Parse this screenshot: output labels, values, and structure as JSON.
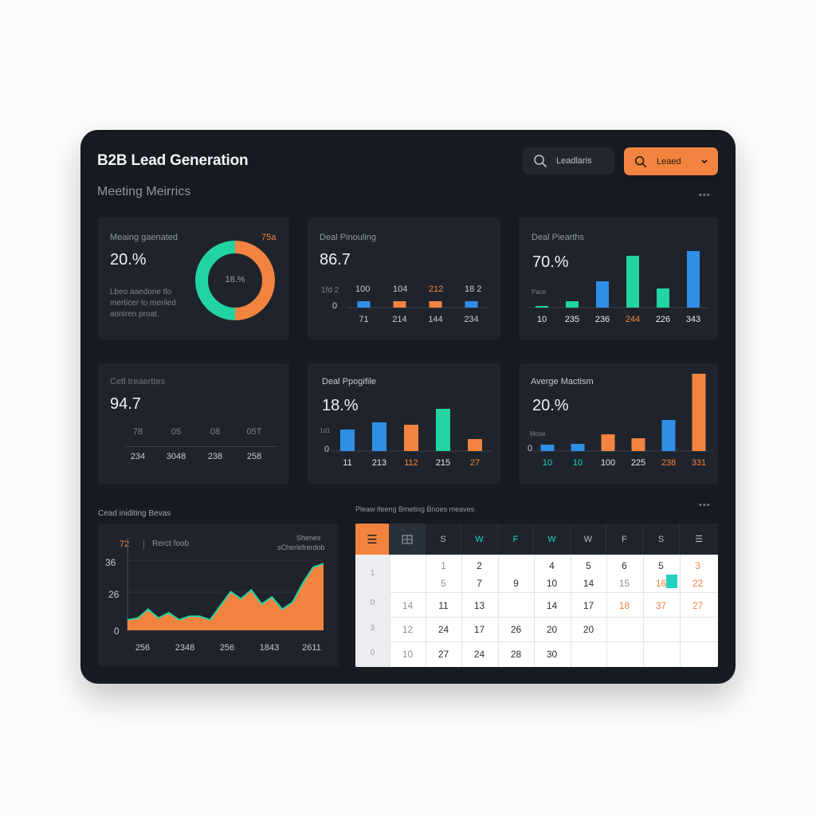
{
  "header": {
    "title": "B2B Lead Generation",
    "subtitle": "Meeting Meirrics",
    "search_label": "Leadlaris",
    "button_label": "Leaed"
  },
  "icons": {
    "search": "search-icon",
    "chevron": "chevron-down-icon",
    "more": "more-dots-icon",
    "menu": "menu-icon",
    "grid": "grid-icon"
  },
  "colors": {
    "panel": "#161a21",
    "card": "#1f242c",
    "orange": "#f2843f",
    "green": "#22d3a4",
    "blue": "#2f8fe6"
  },
  "card1": {
    "label": "Meaing gaenated",
    "value": "20.%",
    "badge": "75а",
    "desc_line1": "Lbeo aaedone tlo",
    "desc_line2": "merticer to meriled",
    "desc_line3": "aoniren proat.",
    "donut_center": "18.%"
  },
  "card2": {
    "label": "Deal Pinouling",
    "value": "86.7",
    "y_zero": "0",
    "top_labels": [
      "1fd 2",
      "100",
      "104",
      "212",
      "18 2"
    ],
    "x_labels": [
      "71",
      "214",
      "144",
      "234"
    ]
  },
  "card3": {
    "label": "Deal Piearths",
    "value": "70.%",
    "axis_note": "Pace",
    "x_labels": [
      "10",
      "235",
      "236",
      "244",
      "226",
      "343"
    ]
  },
  "card4": {
    "label": "Cetl treaerttes",
    "value": "94.7",
    "top_labels": [
      "78",
      "05",
      "08",
      "05T"
    ],
    "x_labels": [
      "234",
      "3048",
      "238",
      "258"
    ]
  },
  "card5": {
    "label": "Deal Ppogifile",
    "value": "18.%",
    "y_note": "1d1",
    "y_zero": "0",
    "x_labels": [
      "11",
      "213",
      "112",
      "215",
      "27"
    ]
  },
  "card6": {
    "label": "Averge Mactism",
    "value": "20.%",
    "axis_note": "Mose",
    "y_zero": "0",
    "x_labels": [
      "10",
      "10",
      "100",
      "225",
      "238",
      "331"
    ]
  },
  "area_card": {
    "section_title": "Cead iniditing Bevas",
    "badge": "72 ",
    "badge_label": "Rerct foob",
    "legend_line1": "Shenes",
    "legend_line2": "sCherlefrerdob",
    "y_ticks": [
      "36",
      "26",
      "0"
    ],
    "x_labels": [
      "256",
      "2348",
      "256",
      "1843",
      "2611"
    ]
  },
  "calendar": {
    "section_title": "Pleaw ifeeng Bmeting Bnoes meaves",
    "day_headers": [
      "S",
      "W",
      "F",
      "W",
      "W",
      "F",
      "S"
    ],
    "week_numbers": [
      "1",
      "0",
      "3",
      "0"
    ],
    "rows": [
      [
        "",
        "1",
        "2",
        "4",
        "5",
        "6",
        "5",
        "3"
      ],
      [
        "",
        "5",
        "7",
        "9",
        "10",
        "14",
        "15",
        "16",
        "22"
      ],
      [
        "14",
        "11",
        "13",
        "14",
        "17",
        "18",
        "37",
        "27"
      ],
      [
        "12",
        "24",
        "17",
        "26",
        "20",
        "20",
        "",
        ""
      ],
      [
        "10",
        "27",
        "24",
        "28",
        "30",
        "",
        "",
        ""
      ]
    ]
  },
  "chart_data": [
    {
      "type": "pie",
      "title": "Meaing gaenated",
      "values": [
        50,
        50
      ],
      "colors": [
        "#f2843f",
        "#22d3a4"
      ]
    },
    {
      "type": "bar",
      "title": "Deal Pinouling",
      "categories": [
        "71",
        "214",
        "144",
        "234"
      ],
      "values": [
        8,
        8,
        8,
        8
      ],
      "colors": [
        "#2f8fe6",
        "#f2843f",
        "#f2843f",
        "#2f8fe6"
      ]
    },
    {
      "type": "bar",
      "title": "Deal Piearths",
      "categories": [
        "10",
        "235",
        "236",
        "244",
        "226",
        "343"
      ],
      "values": [
        2,
        8,
        33,
        65,
        24,
        71
      ],
      "colors": [
        "#22d3a4",
        "#22d3a4",
        "#2f8fe6",
        "#22d3a4",
        "#22d3a4",
        "#2f8fe6"
      ]
    },
    {
      "type": "bar",
      "title": "Deal Ppogifile",
      "categories": [
        "11",
        "213",
        "112",
        "215",
        "27"
      ],
      "values": [
        27,
        36,
        33,
        53,
        15
      ],
      "colors": [
        "#2f8fe6",
        "#2f8fe6",
        "#f2843f",
        "#22d3a4",
        "#f2843f"
      ]
    },
    {
      "type": "bar",
      "title": "Averge Mactism",
      "categories": [
        "10",
        "10",
        "100",
        "225",
        "238",
        "331"
      ],
      "values": [
        8,
        9,
        21,
        16,
        39,
        97
      ],
      "colors": [
        "#2f8fe6",
        "#2f8fe6",
        "#f2843f",
        "#f2843f",
        "#2f8fe6",
        "#f2843f"
      ]
    },
    {
      "type": "area",
      "title": "Cead iniditing Bevas",
      "y_ticks": [
        "36",
        "26",
        "0"
      ],
      "x_labels": [
        "256",
        "2348",
        "256",
        "1843",
        "2611"
      ],
      "values": [
        6,
        7,
        12,
        7,
        10,
        6,
        8,
        8,
        6,
        14,
        22,
        18,
        23,
        15,
        19,
        12,
        16,
        27,
        36,
        38
      ]
    }
  ]
}
